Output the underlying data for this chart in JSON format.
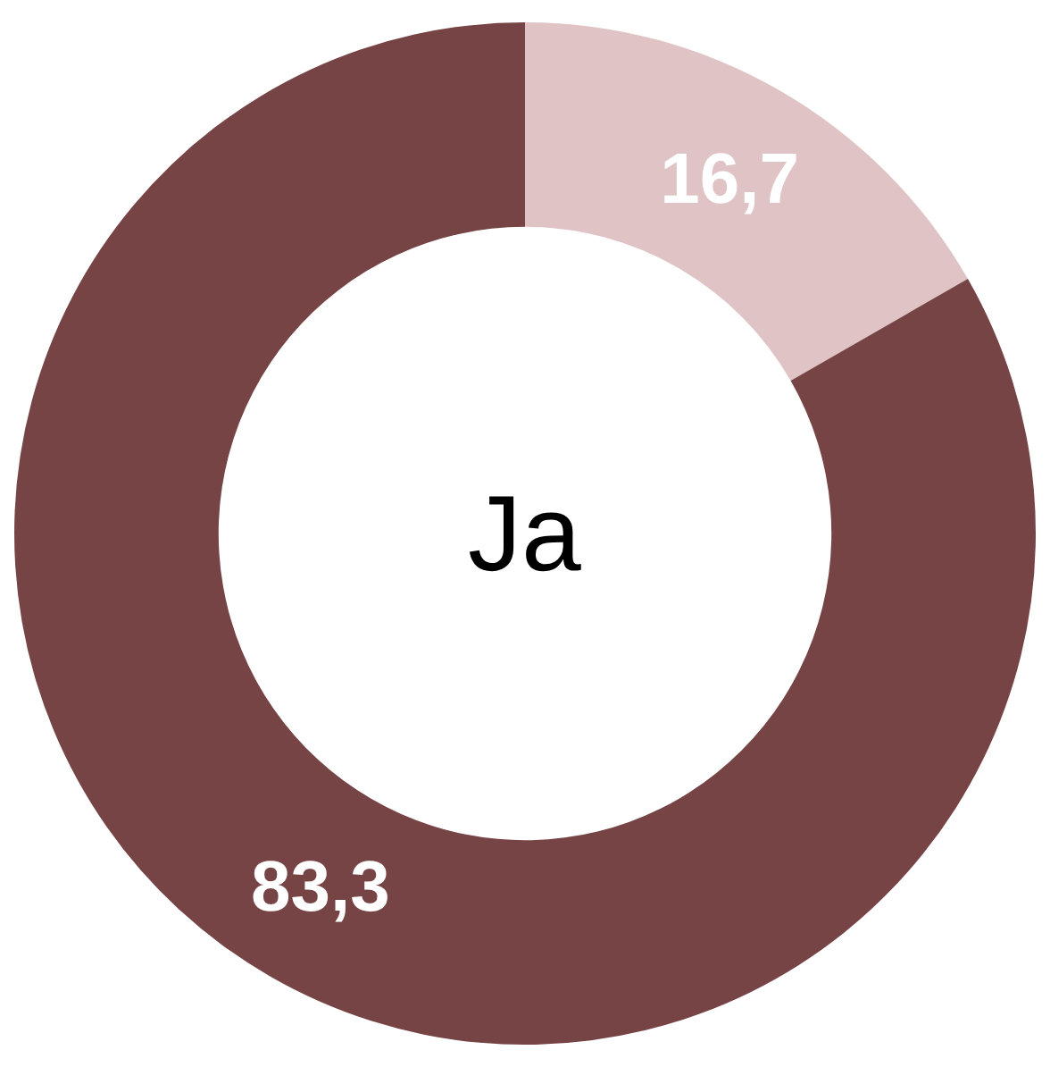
{
  "chart_data": {
    "type": "donut",
    "title": "Ja",
    "categories": [
      null,
      null
    ],
    "values": [
      16.7,
      83.3
    ],
    "colors": [
      "#dfc3c5",
      "#774446"
    ],
    "value_labels": [
      "16,7",
      "83,3"
    ],
    "legend": false
  }
}
